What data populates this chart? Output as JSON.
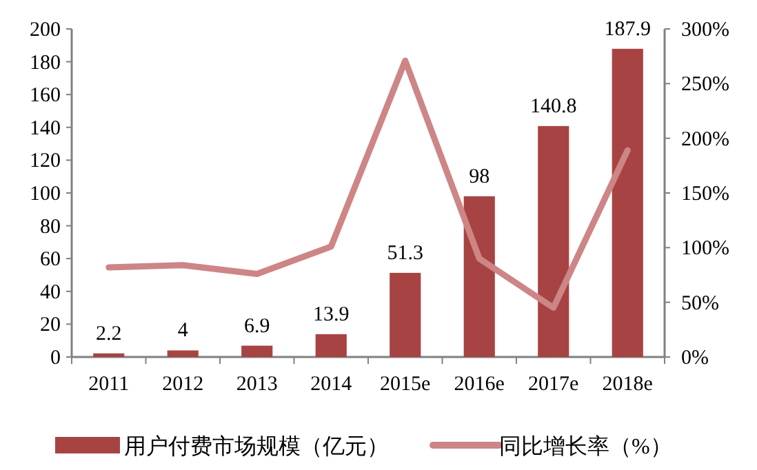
{
  "chart_data": {
    "type": "bar",
    "categories": [
      "2011",
      "2012",
      "2013",
      "2014",
      "2015e",
      "2016e",
      "2017e",
      "2018e"
    ],
    "series": [
      {
        "name": "用户付费市场规模（亿元）",
        "color": "#a84343",
        "values": [
          2.2,
          4,
          6.9,
          13.9,
          51.3,
          98,
          140.8,
          187.9
        ],
        "value_labels": [
          "2.2",
          "4",
          "6.9",
          "13.9",
          "51.3",
          "98",
          "140.8",
          "187.9"
        ]
      },
      {
        "name": "同比增长率（%）",
        "type": "line",
        "axis": "y2",
        "color": "#cd8586",
        "values": [
          82,
          84,
          76,
          101,
          271,
          90,
          45,
          189
        ]
      }
    ],
    "ylim": [
      0,
      200
    ],
    "yticks": [
      0,
      20,
      40,
      60,
      80,
      100,
      120,
      140,
      160,
      180,
      200
    ],
    "y2lim": [
      0,
      300
    ],
    "y2ticks": [
      {
        "value": 0,
        "label": "0%"
      },
      {
        "value": 50,
        "label": "50%"
      },
      {
        "value": 100,
        "label": "100%"
      },
      {
        "value": 150,
        "label": "150%"
      },
      {
        "value": 200,
        "label": "200%"
      },
      {
        "value": 250,
        "label": "250%"
      },
      {
        "value": 300,
        "label": "300%"
      }
    ],
    "legend": "bottom",
    "grid": false,
    "marker": "none",
    "line_style": "solid"
  }
}
